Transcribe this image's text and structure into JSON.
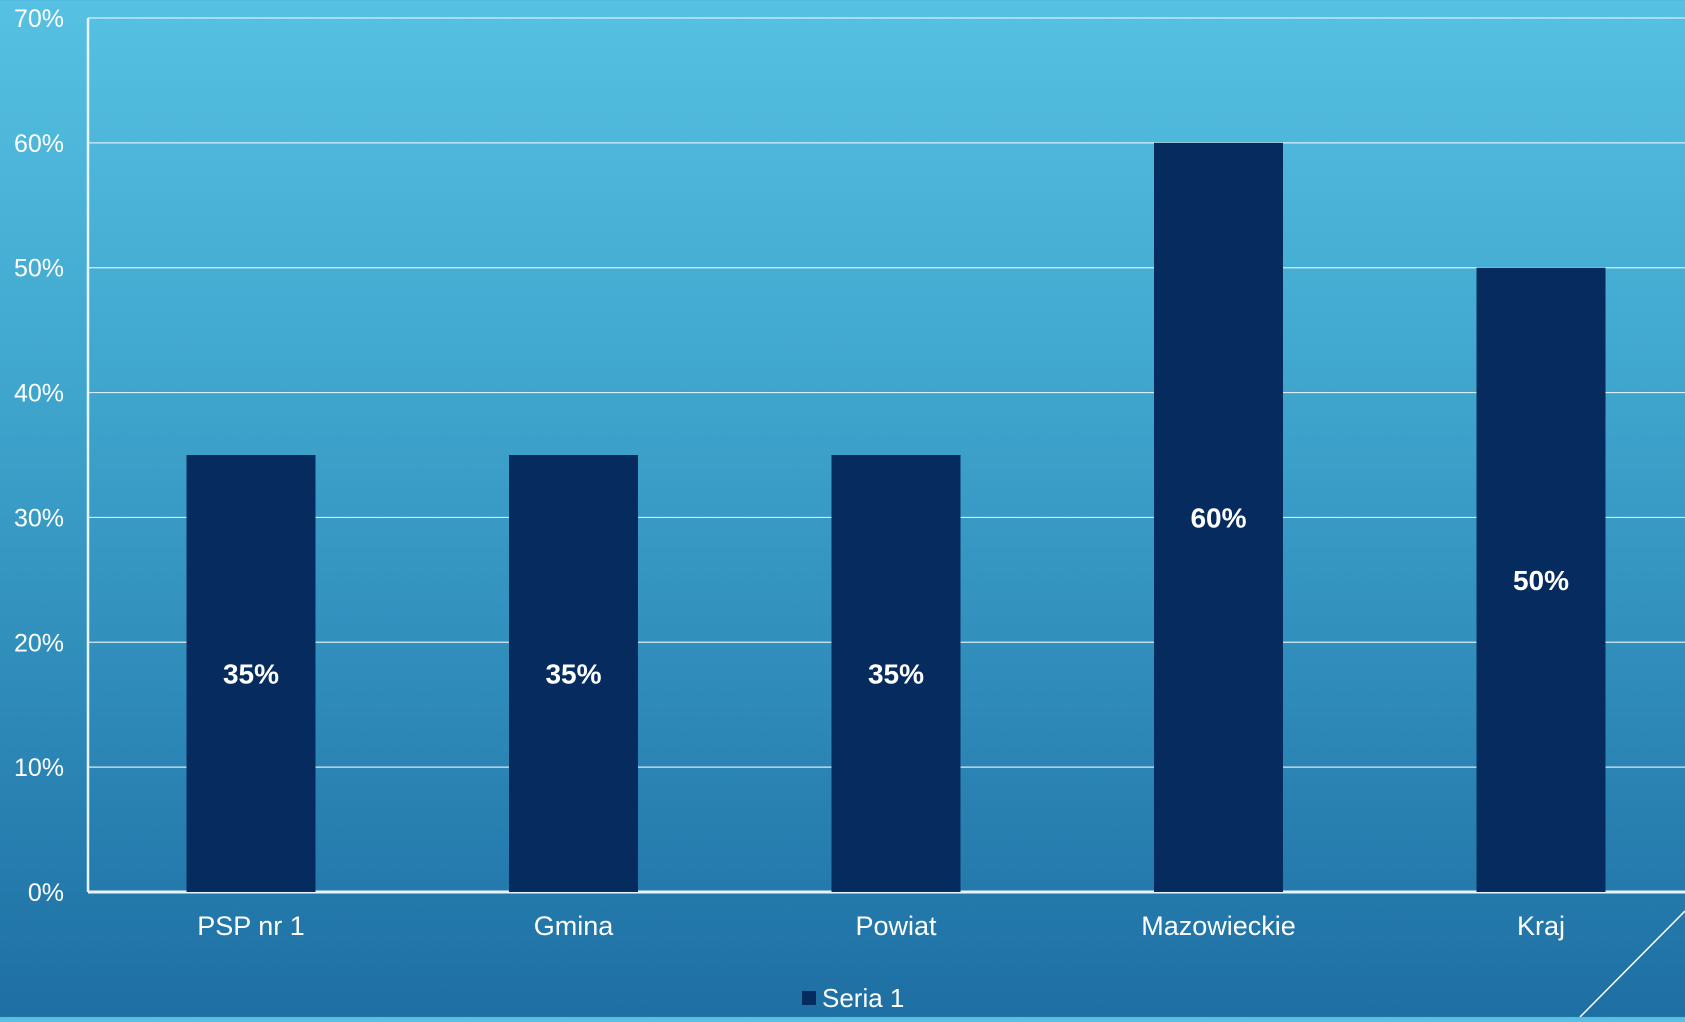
{
  "chart_data": {
    "type": "bar",
    "categories": [
      "PSP nr 1",
      "Gmina",
      "Powiat",
      "Mazowieckie",
      "Kraj"
    ],
    "series": [
      {
        "name": "Seria 1",
        "values": [
          35,
          35,
          35,
          60,
          50
        ]
      }
    ],
    "data_labels": [
      "35%",
      "35%",
      "35%",
      "60%",
      "50%"
    ],
    "ylim": [
      0,
      70
    ],
    "y_ticks": [
      0,
      10,
      20,
      30,
      40,
      50,
      60,
      70
    ],
    "y_tick_labels": [
      "0%",
      "10%",
      "20%",
      "30%",
      "40%",
      "50%",
      "60%",
      "70%"
    ],
    "grid": true,
    "legend_position": "bottom-center",
    "colors": {
      "bar": "#062c5f",
      "grid": "#e8f4fa",
      "text": "#ffffff"
    }
  }
}
